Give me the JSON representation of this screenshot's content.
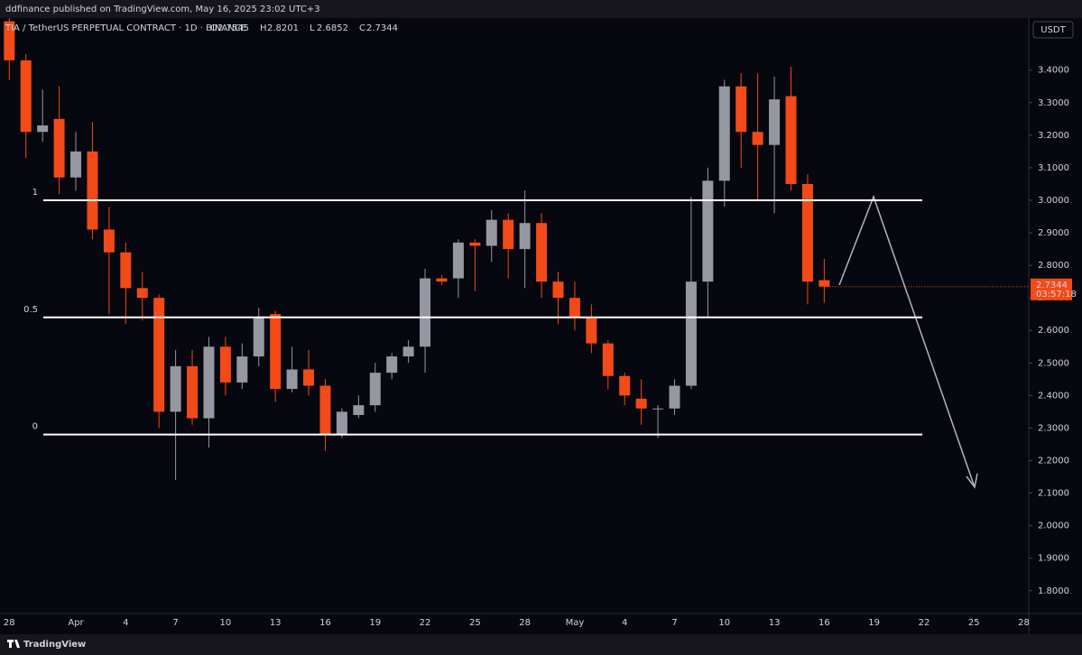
{
  "header": {
    "publisher": "ddfinance published on TradingView.com, May 16, 2025 23:02 UTC+3"
  },
  "footer": {
    "brand": "TradingView"
  },
  "chart_data": {
    "type": "candlestick",
    "title": "TIA / TetherUS PERPETUAL CONTRACT · 1D · BINANCE",
    "ohlc_labels": [
      "O",
      "H",
      "L",
      "C"
    ],
    "currency": "USDT",
    "countdown": "03:57:18",
    "up_color": "#9598a1",
    "down_color": "#f24a18",
    "categories": [
      "28",
      null,
      null,
      null,
      "Apr",
      null,
      null,
      "4",
      null,
      null,
      "7",
      null,
      null,
      "10",
      null,
      null,
      "13",
      null,
      null,
      "16",
      null,
      null,
      "19",
      null,
      null,
      "22",
      null,
      null,
      "25",
      null,
      null,
      "28",
      null,
      null,
      "May",
      null,
      null,
      "4",
      null,
      null,
      "7",
      null,
      null,
      "10",
      null,
      null,
      "13",
      null,
      null,
      "16",
      null,
      null,
      "19",
      null,
      null,
      "22",
      null,
      null,
      "25",
      null,
      null,
      "28"
    ],
    "open": [
      3.55,
      3.43,
      3.21,
      3.25,
      3.07,
      3.15,
      2.91,
      2.84,
      2.73,
      2.7,
      2.35,
      2.49,
      2.33,
      2.55,
      2.44,
      2.52,
      2.65,
      2.42,
      2.48,
      2.43,
      2.28,
      2.34,
      2.37,
      2.47,
      2.52,
      2.55,
      2.76,
      2.76,
      2.87,
      2.86,
      2.94,
      2.85,
      2.93,
      2.75,
      2.7,
      2.64,
      2.56,
      2.46,
      2.39,
      2.36,
      2.36,
      2.43,
      2.75,
      3.06,
      3.35,
      3.21,
      3.17,
      3.32,
      3.05,
      2.7545,
      null,
      null,
      null,
      null,
      null,
      null,
      null,
      null,
      null,
      null,
      null,
      null
    ],
    "high": [
      3.6,
      3.45,
      3.34,
      3.35,
      3.21,
      3.24,
      2.98,
      2.87,
      2.78,
      2.71,
      2.54,
      2.54,
      2.58,
      2.58,
      2.56,
      2.67,
      2.66,
      2.55,
      2.54,
      2.45,
      2.36,
      2.4,
      2.5,
      2.53,
      2.57,
      2.79,
      2.77,
      2.88,
      2.88,
      2.97,
      2.96,
      3.03,
      2.96,
      2.78,
      2.75,
      2.68,
      2.57,
      2.47,
      2.45,
      2.37,
      2.45,
      3.01,
      3.1,
      3.37,
      3.39,
      3.39,
      3.38,
      3.41,
      3.08,
      2.8201,
      null,
      null,
      null,
      null,
      null,
      null,
      null,
      null,
      null,
      null,
      null,
      null
    ],
    "low": [
      3.37,
      3.13,
      3.18,
      3.02,
      3.03,
      2.88,
      2.65,
      2.62,
      2.63,
      2.3,
      2.14,
      2.31,
      2.24,
      2.4,
      2.42,
      2.49,
      2.38,
      2.41,
      2.4,
      2.23,
      2.27,
      2.33,
      2.35,
      2.45,
      2.5,
      2.47,
      2.74,
      2.7,
      2.72,
      2.81,
      2.76,
      2.73,
      2.7,
      2.62,
      2.6,
      2.53,
      2.42,
      2.37,
      2.31,
      2.27,
      2.34,
      2.42,
      2.64,
      2.98,
      3.1,
      3.0,
      2.96,
      3.03,
      2.68,
      2.6852,
      null,
      null,
      null,
      null,
      null,
      null,
      null,
      null,
      null,
      null,
      null,
      null
    ],
    "close": [
      3.43,
      3.21,
      3.23,
      3.07,
      3.15,
      2.91,
      2.84,
      2.73,
      2.7,
      2.35,
      2.49,
      2.33,
      2.55,
      2.44,
      2.52,
      2.64,
      2.42,
      2.48,
      2.43,
      2.28,
      2.35,
      2.37,
      2.47,
      2.52,
      2.55,
      2.76,
      2.75,
      2.87,
      2.86,
      2.94,
      2.85,
      2.93,
      2.75,
      2.7,
      2.64,
      2.56,
      2.46,
      2.4,
      2.36,
      2.36,
      2.43,
      2.75,
      3.06,
      3.35,
      3.21,
      3.17,
      3.31,
      3.05,
      2.75,
      2.7344,
      null,
      null,
      null,
      null,
      null,
      null,
      null,
      null,
      null,
      null,
      null,
      null
    ],
    "ylim": [
      1.73,
      3.56
    ],
    "yticks": [
      {
        "value": 1.8,
        "label": "1.8000"
      },
      {
        "value": 1.9,
        "label": "1.9000"
      },
      {
        "value": 2.0,
        "label": "2.0000"
      },
      {
        "value": 2.1,
        "label": "2.1000"
      },
      {
        "value": 2.2,
        "label": "2.2000"
      },
      {
        "value": 2.3,
        "label": "2.3000"
      },
      {
        "value": 2.4,
        "label": "2.4000"
      },
      {
        "value": 2.5,
        "label": "2.5000"
      },
      {
        "value": 2.6,
        "label": "2.6000"
      },
      {
        "value": 2.7,
        "label": "2.7000"
      },
      {
        "value": 2.8,
        "label": "2.8000"
      },
      {
        "value": 2.9,
        "label": "2.9000"
      },
      {
        "value": 3.0,
        "label": "3.0000"
      },
      {
        "value": 3.1,
        "label": "3.1000"
      },
      {
        "value": 3.2,
        "label": "3.2000"
      },
      {
        "value": 3.3,
        "label": "3.3000"
      },
      {
        "value": 3.4,
        "label": "3.4000"
      }
    ],
    "levels": [
      {
        "label": "1",
        "value": 3.0
      },
      {
        "label": "0.5",
        "value": 2.64
      },
      {
        "label": "0",
        "value": 2.28
      }
    ],
    "level_color": "#ffffff"
  }
}
